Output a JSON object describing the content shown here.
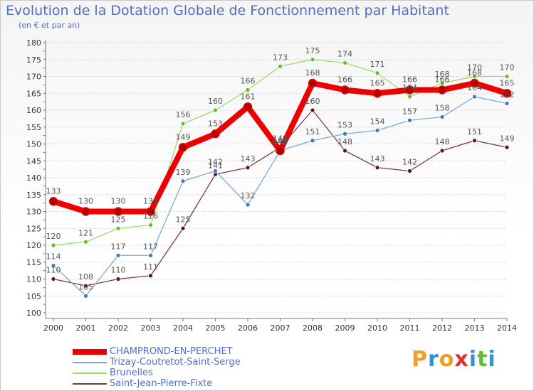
{
  "chart_data": {
    "type": "line",
    "title": "Evolution de la Dotation Globale de Fonctionnement par Habitant",
    "subtitle": "(en € et par an)",
    "xlabel": "",
    "ylabel": "",
    "ylim": [
      100,
      180
    ],
    "yticks": [
      100,
      105,
      110,
      115,
      120,
      125,
      130,
      135,
      140,
      145,
      150,
      155,
      160,
      165,
      170,
      175,
      180
    ],
    "categories": [
      "2000",
      "2001",
      "2002",
      "2003",
      "2004",
      "2005",
      "2006",
      "2007",
      "2008",
      "2009",
      "2010",
      "2011",
      "2012",
      "2013",
      "2014"
    ],
    "legend_position": "bottom-left",
    "grid": "horizontal",
    "series": [
      {
        "name": "CHAMPROND-EN-PERCHET",
        "color": "#ee0000",
        "marker_color": "#aa0000",
        "emphasis": true,
        "values": [
          133,
          130,
          130,
          130,
          149,
          153,
          161,
          148,
          168,
          166,
          165,
          166,
          166,
          168,
          165
        ],
        "labels": [
          "133",
          "130",
          "130",
          "130",
          "149",
          "153",
          "161",
          "148",
          "168",
          "166",
          "165",
          "166",
          "166",
          "168",
          "165"
        ]
      },
      {
        "name": "Trizay-Coutretot-Saint-Serge",
        "color": "#7aaad8",
        "marker_color": "#3a7cc0",
        "emphasis": false,
        "values": [
          114,
          105,
          117,
          117,
          139,
          142,
          132,
          148,
          151,
          153,
          154,
          157,
          158,
          164,
          162
        ],
        "labels": [
          "114",
          "105",
          "117",
          "117",
          "139",
          "142",
          "132",
          "148",
          "151",
          "153",
          "154",
          "157",
          "158",
          "164",
          "162"
        ]
      },
      {
        "name": "Brunelles",
        "color": "#99dd66",
        "marker_color": "#66bb33",
        "emphasis": false,
        "values": [
          120,
          121,
          125,
          126,
          156,
          160,
          166,
          173,
          175,
          174,
          171,
          164,
          168,
          170,
          170
        ],
        "labels": [
          "120",
          "121",
          "125",
          "126",
          "156",
          "160",
          "166",
          "173",
          "175",
          "174",
          "171",
          "164",
          "168",
          "170",
          "170"
        ]
      },
      {
        "name": "Saint-Jean-Pierre-Fixte",
        "color": "#7a3b3b",
        "marker_color": "#5a1818",
        "emphasis": false,
        "values": [
          110,
          108,
          110,
          111,
          125,
          141,
          143,
          149,
          160,
          148,
          143,
          142,
          148,
          151,
          149
        ],
        "labels": [
          "110",
          "108",
          "110",
          "111",
          "125",
          "141",
          "143",
          "149",
          "160",
          "148",
          "143",
          "142",
          "148",
          "151",
          "149"
        ]
      }
    ]
  },
  "brand": {
    "letters": [
      "P",
      "r",
      "o",
      "x",
      "i",
      "t",
      "i"
    ],
    "colors": [
      "#f0a020",
      "#3a8fd8",
      "#f0a020",
      "#e03030",
      "#3a8fd8",
      "#66bb33",
      "#3a8fd8"
    ]
  }
}
